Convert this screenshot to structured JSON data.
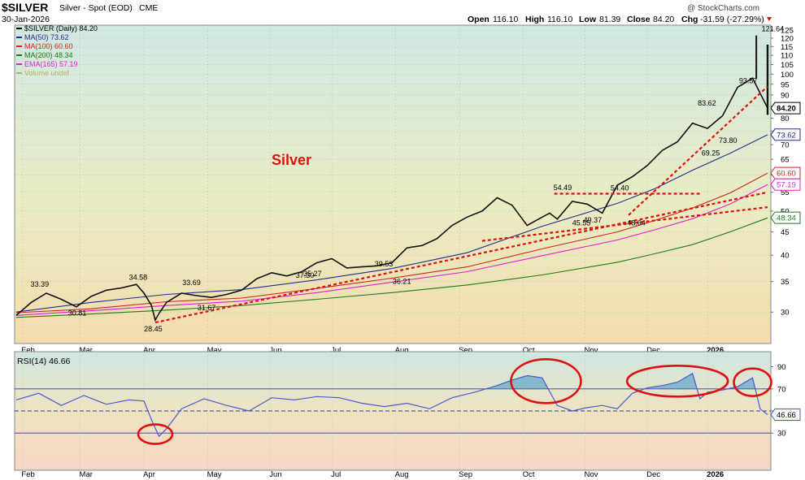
{
  "header": {
    "symbol": "$SILVER",
    "description": "Silver - Spot (EOD)",
    "exchange": "CME",
    "date": "30-Jan-2026",
    "watermark": "@ StockCharts.com",
    "ohlc": {
      "open_label": "Open",
      "open": "116.10",
      "high_label": "High",
      "high": "116.10",
      "low_label": "Low",
      "low": "81.39",
      "close_label": "Close",
      "close": "84.20",
      "chg_label": "Chg",
      "chg": "-31.59 (-27.29%)"
    }
  },
  "legend": [
    {
      "label": "$SILVER (Daily) 84.20",
      "color": "#000000"
    },
    {
      "label": "MA(50) 73.62",
      "color": "#1f2f8f"
    },
    {
      "label": "MA(100) 60.60",
      "color": "#c8281e"
    },
    {
      "label": "MA(200) 48.34",
      "color": "#1f7a1f"
    },
    {
      "label": "EMA(165) 57.19",
      "color": "#e020d0"
    },
    {
      "label": "Volume undef",
      "color": "#b5b56a"
    }
  ],
  "annotation": {
    "text": "Silver",
    "color": "#e01010"
  },
  "colors": {
    "ma50": "#1f2f8f",
    "ma100": "#c8281e",
    "ma200": "#1f7a1f",
    "ema165": "#e020d0",
    "trend": "#e01010",
    "rsi": "#4a5bd0"
  },
  "chart_data": [
    {
      "type": "line",
      "title": "$SILVER (Daily) Silver - Spot (EOD)",
      "scale": "log",
      "ylim": [
        26,
        125
      ],
      "y_ticks": [
        30,
        35,
        40,
        45,
        50,
        55,
        60,
        65,
        70,
        75,
        80,
        85,
        90,
        95,
        100,
        105,
        110,
        115,
        120,
        125
      ],
      "x_tick_labels": [
        "Feb",
        "Mar",
        "Apr",
        "May",
        "Jun",
        "Jul",
        "Aug",
        "Sep",
        "Oct",
        "Nov",
        "Dec",
        "2026"
      ],
      "series": [
        {
          "name": "$SILVER",
          "t": [
            0,
            0.02,
            0.04,
            0.06,
            0.08,
            0.1,
            0.12,
            0.14,
            0.16,
            0.17,
            0.18,
            0.185,
            0.19,
            0.2,
            0.22,
            0.24,
            0.26,
            0.28,
            0.3,
            0.32,
            0.34,
            0.36,
            0.38,
            0.4,
            0.42,
            0.44,
            0.46,
            0.48,
            0.5,
            0.52,
            0.54,
            0.56,
            0.58,
            0.6,
            0.62,
            0.64,
            0.66,
            0.68,
            0.7,
            0.71,
            0.72,
            0.74,
            0.76,
            0.78,
            0.8,
            0.82,
            0.84,
            0.86,
            0.88,
            0.9,
            0.92,
            0.94,
            0.96,
            0.98,
            1.0
          ],
          "values": [
            29.5,
            31.5,
            33.0,
            32.0,
            30.8,
            32.5,
            33.5,
            33.9,
            34.5,
            33.0,
            31.0,
            28.8,
            29.8,
            31.5,
            33.0,
            32.6,
            32.3,
            32.8,
            33.5,
            35.5,
            36.6,
            36.0,
            36.8,
            38.5,
            39.3,
            37.5,
            37.7,
            37.9,
            38.5,
            41.5,
            42.0,
            43.5,
            46.5,
            48.5,
            50.0,
            53.5,
            51.5,
            46.5,
            48.5,
            49.5,
            48.0,
            52.5,
            51.8,
            49.5,
            57.0,
            59.5,
            63.0,
            68.0,
            71.0,
            78.0,
            76.0,
            81.0,
            93.5,
            98.0,
            84.2
          ]
        },
        {
          "name": "MA(50) 73.62",
          "t": [
            0,
            0.1,
            0.2,
            0.3,
            0.4,
            0.5,
            0.6,
            0.7,
            0.8,
            0.85,
            0.9,
            0.95,
            1.0
          ],
          "values": [
            30.0,
            31.5,
            32.8,
            33.6,
            35.3,
            37.4,
            40.5,
            46.3,
            52.0,
            56.0,
            61.5,
            67.0,
            73.6
          ]
        },
        {
          "name": "MA(100) 60.60",
          "t": [
            0,
            0.1,
            0.2,
            0.3,
            0.4,
            0.5,
            0.6,
            0.7,
            0.8,
            0.85,
            0.9,
            0.95,
            1.0
          ],
          "values": [
            29.9,
            30.5,
            31.6,
            32.2,
            33.8,
            35.6,
            37.7,
            41.3,
            45.0,
            47.7,
            50.8,
            54.8,
            60.6
          ]
        },
        {
          "name": "MA(200) 48.34",
          "t": [
            0,
            0.1,
            0.2,
            0.3,
            0.4,
            0.5,
            0.6,
            0.7,
            0.8,
            0.85,
            0.9,
            0.95,
            1.0
          ],
          "values": [
            29.2,
            29.7,
            30.3,
            31.0,
            32.0,
            33.1,
            34.4,
            36.2,
            38.6,
            40.3,
            42.2,
            45.0,
            48.3
          ]
        },
        {
          "name": "EMA(165) 57.19",
          "t": [
            0,
            0.1,
            0.2,
            0.3,
            0.4,
            0.5,
            0.6,
            0.7,
            0.8,
            0.85,
            0.9,
            0.95,
            1.0
          ],
          "values": [
            29.5,
            30.2,
            31.0,
            31.7,
            33.1,
            34.9,
            36.8,
            39.9,
            43.2,
            45.5,
            48.1,
            51.8,
            57.2
          ]
        }
      ],
      "data_labels": [
        {
          "t": 0.032,
          "value": 33.39,
          "text": "33.39"
        },
        {
          "t": 0.082,
          "value": 30.81,
          "text": "30.81"
        },
        {
          "t": 0.163,
          "value": 34.58,
          "text": "34.58"
        },
        {
          "t": 0.183,
          "value": 28.45,
          "text": "28.45"
        },
        {
          "t": 0.234,
          "value": 33.69,
          "text": "33.69"
        },
        {
          "t": 0.254,
          "value": 31.67,
          "text": "31.67"
        },
        {
          "t": 0.385,
          "value": 37.3,
          "text": "37.30"
        },
        {
          "t": 0.395,
          "value": 35.27,
          "text": "35.27"
        },
        {
          "t": 0.49,
          "value": 39.53,
          "text": "39.53"
        },
        {
          "t": 0.514,
          "value": 36.21,
          "text": "36.21"
        },
        {
          "t": 0.728,
          "value": 54.49,
          "text": "54.49"
        },
        {
          "t": 0.768,
          "value": 49.37,
          "text": "49.37"
        },
        {
          "t": 0.753,
          "value": 45.55,
          "text": "45.55"
        },
        {
          "t": 0.804,
          "value": 54.4,
          "text": "54.40"
        },
        {
          "t": 0.826,
          "value": 48.64,
          "text": "48.64"
        },
        {
          "t": 0.92,
          "value": 83.62,
          "text": "83.62"
        },
        {
          "t": 0.925,
          "value": 69.25,
          "text": "69.25"
        },
        {
          "t": 0.948,
          "value": 73.8,
          "text": "73.80"
        },
        {
          "t": 0.975,
          "value": 93.57,
          "text": "93.57"
        },
        {
          "t": 1.005,
          "value": 121.64,
          "text": "121.64"
        }
      ],
      "price_tags": [
        {
          "value": 84.2,
          "text": "84.20",
          "color": "#000000"
        },
        {
          "value": 73.62,
          "text": "73.62",
          "color": "#1f2f8f"
        },
        {
          "value": 60.6,
          "text": "60.60",
          "color": "#c8281e"
        },
        {
          "value": 57.19,
          "text": "57.19",
          "color": "#e020d0"
        },
        {
          "value": 48.34,
          "text": "48.34",
          "color": "#1f7a1f"
        }
      ],
      "trendlines": [
        {
          "name": "support-from-april-low",
          "from": {
            "t": 0.185,
            "value": 28.45
          },
          "to": {
            "t": 1.0,
            "value": 55.0
          }
        },
        {
          "name": "lower-support",
          "from": {
            "t": 0.62,
            "value": 43.0
          },
          "to": {
            "t": 1.0,
            "value": 51.0
          }
        },
        {
          "name": "steep-uptrend",
          "from": {
            "t": 0.815,
            "value": 49.0
          },
          "to": {
            "t": 1.0,
            "value": 94.0
          }
        },
        {
          "name": "resistance-54",
          "from": {
            "t": 0.716,
            "value": 54.6
          },
          "to": {
            "t": 0.91,
            "value": 54.6
          }
        }
      ]
    },
    {
      "type": "line",
      "title": "RSI(14) 46.66",
      "ylim": [
        0,
        100
      ],
      "y_ticks": [
        30,
        50,
        70,
        90
      ],
      "reference_lines": [
        30,
        50,
        70
      ],
      "x_tick_labels": [
        "Feb",
        "Mar",
        "Apr",
        "May",
        "Jun",
        "Jul",
        "Aug",
        "Sep",
        "Oct",
        "Nov",
        "Dec",
        "2026"
      ],
      "series": [
        {
          "name": "RSI(14)",
          "t": [
            0,
            0.03,
            0.06,
            0.09,
            0.12,
            0.15,
            0.17,
            0.18,
            0.19,
            0.2,
            0.22,
            0.25,
            0.28,
            0.31,
            0.34,
            0.37,
            0.4,
            0.43,
            0.46,
            0.49,
            0.52,
            0.55,
            0.58,
            0.61,
            0.64,
            0.66,
            0.68,
            0.7,
            0.72,
            0.74,
            0.76,
            0.78,
            0.8,
            0.82,
            0.84,
            0.86,
            0.88,
            0.9,
            0.91,
            0.92,
            0.94,
            0.96,
            0.98,
            0.99,
            1.0
          ],
          "values": [
            60,
            66,
            55,
            64,
            56,
            60,
            59,
            42,
            27,
            34,
            52,
            61,
            55,
            50,
            62,
            60,
            63,
            62,
            57,
            54,
            57,
            52,
            62,
            67,
            73,
            78,
            82,
            80,
            55,
            50,
            53,
            55,
            52,
            66,
            71,
            73,
            76,
            84,
            61,
            67,
            69,
            72,
            80,
            52,
            46.66
          ]
        }
      ],
      "value_tag": {
        "value": 46.66,
        "text": "46.66"
      },
      "circled_zones": [
        {
          "name": "oversold-april",
          "t_center": 0.185,
          "value": 29
        },
        {
          "name": "overbought-october",
          "t_center": 0.705,
          "value": 77
        },
        {
          "name": "overbought-december",
          "t_center": 0.88,
          "value": 77
        },
        {
          "name": "overbought-january",
          "t_center": 0.98,
          "value": 76
        }
      ]
    }
  ]
}
